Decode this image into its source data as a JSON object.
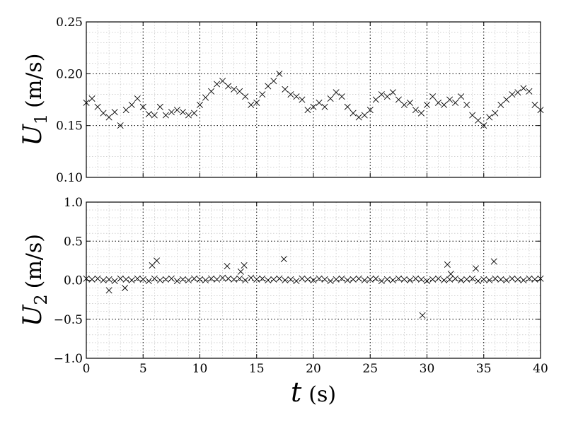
{
  "chart_data": [
    {
      "type": "scatter",
      "title": "",
      "xlabel": "",
      "ylabel": "U_1 (m/s)",
      "ylabel_parts": {
        "symbol": "U",
        "subscript": "1",
        "units": "(m/s)"
      },
      "xlim": [
        0,
        40
      ],
      "ylim": [
        0.1,
        0.25
      ],
      "x_major_ticks": [
        0,
        5,
        10,
        15,
        20,
        25,
        30,
        35,
        40
      ],
      "y_major_ticks": [
        0.1,
        0.15,
        0.2,
        0.25
      ],
      "y_tick_labels": [
        "0.10",
        "0.15",
        "0.20",
        "0.25"
      ],
      "y_minor_step": 0.01,
      "grid": true,
      "marker": "x",
      "series": [
        {
          "x": [
            0.0,
            0.5,
            1.0,
            1.5,
            2.0,
            2.5,
            3.0,
            3.5,
            4.0,
            4.5,
            5.0,
            5.5,
            6.0,
            6.5,
            7.0,
            7.5,
            8.0,
            8.5,
            9.0,
            9.5,
            10.0,
            10.5,
            11.0,
            11.5,
            12.0,
            12.5,
            13.0,
            13.5,
            14.0,
            14.5,
            15.0,
            15.5,
            16.0,
            16.5,
            17.0,
            17.5,
            18.0,
            18.5,
            19.0,
            19.5,
            20.0,
            20.5,
            21.0,
            21.5,
            22.0,
            22.5,
            23.0,
            23.5,
            24.0,
            24.5,
            25.0,
            25.5,
            26.0,
            26.5,
            27.0,
            27.5,
            28.0,
            28.5,
            29.0,
            29.5,
            30.0,
            30.5,
            31.0,
            31.5,
            32.0,
            32.5,
            33.0,
            33.5,
            34.0,
            34.5,
            35.0,
            35.5,
            36.0,
            36.5,
            37.0,
            37.5,
            38.0,
            38.5,
            39.0,
            39.5,
            40.0
          ],
          "y": [
            0.172,
            0.176,
            0.168,
            0.162,
            0.158,
            0.163,
            0.15,
            0.165,
            0.17,
            0.176,
            0.168,
            0.161,
            0.16,
            0.168,
            0.16,
            0.163,
            0.165,
            0.163,
            0.16,
            0.162,
            0.17,
            0.177,
            0.183,
            0.19,
            0.193,
            0.188,
            0.185,
            0.183,
            0.178,
            0.17,
            0.172,
            0.18,
            0.188,
            0.193,
            0.2,
            0.185,
            0.18,
            0.178,
            0.175,
            0.165,
            0.168,
            0.172,
            0.168,
            0.176,
            0.182,
            0.178,
            0.168,
            0.162,
            0.158,
            0.16,
            0.165,
            0.175,
            0.18,
            0.178,
            0.182,
            0.175,
            0.17,
            0.172,
            0.165,
            0.162,
            0.17,
            0.178,
            0.172,
            0.17,
            0.175,
            0.172,
            0.178,
            0.17,
            0.16,
            0.155,
            0.15,
            0.158,
            0.162,
            0.17,
            0.175,
            0.18,
            0.182,
            0.186,
            0.183,
            0.17,
            0.165
          ]
        }
      ]
    },
    {
      "type": "scatter",
      "title": "",
      "xlabel": "t (s)",
      "xlabel_parts": {
        "symbol": "t",
        "units": "(s)"
      },
      "ylabel": "U_2 (m/s)",
      "ylabel_parts": {
        "symbol": "U",
        "subscript": "2",
        "units": "(m/s)"
      },
      "xlim": [
        0,
        40
      ],
      "ylim": [
        -1.0,
        1.0
      ],
      "x_major_ticks": [
        0,
        5,
        10,
        15,
        20,
        25,
        30,
        35,
        40
      ],
      "x_tick_labels": [
        "0",
        "5",
        "10",
        "15",
        "20",
        "25",
        "30",
        "35",
        "40"
      ],
      "y_major_ticks": [
        -1.0,
        -0.5,
        0.0,
        0.5,
        1.0
      ],
      "y_tick_labels": [
        "−1.0",
        "−0.5",
        "0.0",
        "0.5",
        "1.0"
      ],
      "y_minor_step": 0.1,
      "grid": true,
      "marker": "x",
      "series": [
        {
          "x": [
            0.0,
            0.5,
            1.0,
            1.5,
            2.0,
            2.5,
            3.0,
            3.5,
            4.0,
            4.5,
            5.0,
            5.5,
            6.0,
            6.5,
            7.0,
            7.5,
            8.0,
            8.5,
            9.0,
            9.5,
            10.0,
            10.5,
            11.0,
            11.5,
            12.0,
            12.5,
            13.0,
            13.5,
            14.0,
            14.5,
            15.0,
            15.5,
            16.0,
            16.5,
            17.0,
            17.5,
            18.0,
            18.5,
            19.0,
            19.5,
            20.0,
            20.5,
            21.0,
            21.5,
            22.0,
            22.5,
            23.0,
            23.5,
            24.0,
            24.5,
            25.0,
            25.5,
            26.0,
            26.5,
            27.0,
            27.5,
            28.0,
            28.5,
            29.0,
            29.5,
            30.0,
            30.5,
            31.0,
            31.5,
            32.0,
            32.5,
            33.0,
            33.5,
            34.0,
            34.5,
            35.0,
            35.5,
            36.0,
            36.5,
            37.0,
            37.5,
            38.0,
            38.5,
            39.0,
            39.5,
            40.0,
            2.0,
            3.4,
            5.8,
            6.2,
            12.4,
            13.6,
            13.9,
            17.4,
            29.6,
            31.8,
            32.1,
            34.3,
            35.9
          ],
          "y": [
            0.02,
            0.01,
            0.02,
            0.0,
            0.01,
            -0.01,
            0.02,
            0.01,
            0.0,
            0.02,
            0.01,
            -0.01,
            0.02,
            0.0,
            0.01,
            0.02,
            -0.01,
            0.01,
            0.0,
            0.02,
            0.01,
            0.0,
            0.02,
            0.01,
            0.03,
            0.02,
            0.01,
            0.02,
            0.0,
            0.03,
            0.01,
            0.02,
            0.0,
            0.01,
            0.02,
            0.0,
            0.01,
            -0.01,
            0.02,
            0.01,
            0.0,
            0.02,
            0.01,
            -0.01,
            0.01,
            0.02,
            0.0,
            0.01,
            0.02,
            0.0,
            0.01,
            0.02,
            -0.01,
            0.01,
            0.0,
            0.02,
            0.01,
            0.0,
            0.02,
            0.01,
            -0.01,
            0.01,
            0.02,
            0.0,
            0.01,
            0.02,
            0.0,
            0.01,
            0.02,
            -0.01,
            0.01,
            0.0,
            0.02,
            0.01,
            0.0,
            0.02,
            0.01,
            0.0,
            0.02,
            0.01,
            0.02,
            -0.13,
            -0.1,
            0.19,
            0.25,
            0.18,
            0.11,
            0.19,
            0.27,
            -0.45,
            0.2,
            0.08,
            0.15,
            0.24
          ]
        }
      ]
    }
  ]
}
